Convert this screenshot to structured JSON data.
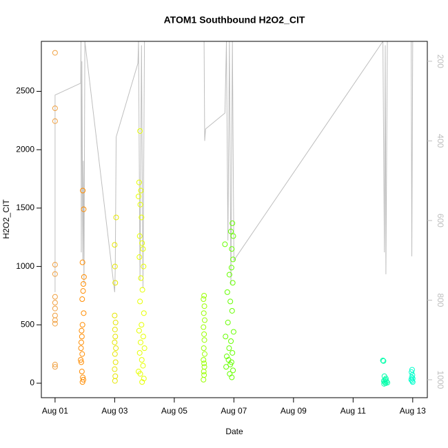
{
  "chart_data": {
    "type": "scatter",
    "title": "ATOM1 Southbound H2O2_CIT",
    "x_label": "Date",
    "y_label": "H2O2_CIT",
    "xlim": [
      -0.46,
      12.49
    ],
    "xticks": [
      {
        "value": 0,
        "label": "Aug 01"
      },
      {
        "value": 2,
        "label": "Aug 03"
      },
      {
        "value": 4,
        "label": "Aug 05"
      },
      {
        "value": 6,
        "label": "Aug 07"
      },
      {
        "value": 8,
        "label": "Aug 09"
      },
      {
        "value": 10,
        "label": "Aug 11"
      },
      {
        "value": 12,
        "label": "Aug 13"
      }
    ],
    "ylim": [
      -124,
      2928
    ],
    "yticks": [
      0,
      500,
      1000,
      1500,
      2000,
      2500
    ],
    "y2lim": [
      1045,
      150
    ],
    "y2ticks": [
      200,
      400,
      600,
      800,
      1000
    ],
    "y2_color": "#bebebe",
    "series": [
      {
        "color": "#f0a040",
        "x": [
          0.0,
          0.0,
          0.0,
          0.0,
          0.0,
          0.0,
          0.0,
          0.0,
          0.0,
          0.0,
          0.0,
          0.0,
          0.0
        ],
        "values": [
          2830,
          2355,
          2245,
          1015,
          935,
          740,
          690,
          640,
          580,
          540,
          510,
          160,
          140
        ]
      },
      {
        "color": "#ff8c00",
        "x": [
          0.93,
          0.96,
          0.92,
          0.97,
          0.95,
          0.94,
          0.91,
          0.96,
          0.92,
          0.89,
          0.9,
          0.88,
          0.87,
          0.91,
          0.86,
          0.88,
          0.9,
          0.93,
          0.95,
          0.92
        ],
        "values": [
          1650,
          1490,
          1035,
          910,
          850,
          790,
          720,
          600,
          500,
          450,
          400,
          350,
          300,
          250,
          200,
          180,
          100,
          50,
          30,
          10
        ]
      },
      {
        "color": "#e6e600",
        "x": [
          2.05,
          2.0,
          2.01,
          2.02,
          2.0,
          2.03,
          2.01,
          2.02,
          2.0,
          2.04,
          2.01,
          2.03,
          2.0,
          2.02,
          2.01
        ],
        "values": [
          1420,
          1185,
          1000,
          860,
          580,
          520,
          460,
          400,
          350,
          300,
          250,
          180,
          120,
          60,
          20
        ]
      },
      {
        "color": "#e6ff00",
        "x": [
          2.85,
          2.82,
          2.88,
          2.8,
          2.86,
          2.9,
          2.84,
          2.92,
          2.95,
          2.83,
          2.97,
          2.88,
          2.93,
          2.85,
          2.98,
          2.9,
          2.82,
          2.96,
          2.87,
          3.0,
          2.84,
          2.91,
          2.95,
          2.8,
          2.86,
          2.98,
          2.92
        ],
        "values": [
          2160,
          1720,
          1650,
          1600,
          1530,
          1420,
          1260,
          1200,
          1150,
          1080,
          1000,
          900,
          800,
          700,
          600,
          500,
          450,
          400,
          350,
          300,
          260,
          200,
          150,
          100,
          80,
          40,
          10
        ]
      },
      {
        "color": "#99ff00",
        "x": [
          5.0,
          4.98,
          5.01,
          4.99,
          5.02,
          4.98,
          5.0,
          5.01,
          4.99,
          5.02,
          4.98,
          5.0,
          5.01,
          4.99,
          5.0,
          4.98
        ],
        "values": [
          750,
          720,
          660,
          600,
          540,
          480,
          420,
          370,
          300,
          250,
          200,
          170,
          140,
          100,
          70,
          30
        ]
      },
      {
        "color": "#66ff00",
        "x": [
          5.95,
          5.9,
          5.98,
          5.7,
          5.93,
          5.97,
          5.92,
          5.85,
          5.96,
          5.78,
          5.88,
          5.94,
          5.8,
          5.99,
          5.72,
          5.9,
          5.84,
          5.95,
          5.76,
          5.82,
          5.92,
          5.88,
          5.74,
          5.97,
          5.86,
          5.93
        ],
        "values": [
          1370,
          1300,
          1260,
          1190,
          1150,
          1060,
          990,
          930,
          860,
          780,
          700,
          620,
          520,
          440,
          400,
          360,
          300,
          260,
          230,
          200,
          180,
          160,
          140,
          110,
          80,
          50
        ]
      },
      {
        "color": "#00ffaa",
        "x": [
          11.0,
          11.02,
          11.05,
          11.1,
          11.08,
          11.03,
          11.12,
          11.06,
          11.15,
          11.09,
          11.04
        ],
        "values": [
          195,
          190,
          60,
          40,
          30,
          20,
          15,
          10,
          5,
          0,
          -5
        ]
      },
      {
        "color": "#00ffcc",
        "x": [
          11.98,
          11.96,
          11.99,
          11.97,
          12.0,
          11.95,
          11.98,
          12.0
        ],
        "values": [
          115,
          95,
          70,
          50,
          40,
          30,
          20,
          10
        ]
      },
      {
        "type": "line",
        "axis": "y2",
        "color": "#bebebe",
        "x": [
          0,
          0,
          0.86,
          0.87,
          0.88,
          0.9,
          0.93,
          0.95,
          0.97,
          1.0,
          2.0,
          2.02,
          2.05,
          2.78,
          2.8,
          2.85,
          2.9,
          2.95,
          3.0,
          3.3,
          5.0,
          5.02,
          5.05,
          5.7,
          5.75,
          5.8,
          5.85,
          5.9,
          5.95,
          6.0,
          11.0,
          11.05,
          11.08,
          11.1,
          11.15,
          11.95,
          11.97,
          12.0
        ],
        "values": [
          780,
          285,
          255,
          150,
          680,
          200,
          700,
          450,
          760,
          150,
          780,
          720,
          390,
          205,
          150,
          750,
          160,
          770,
          150,
          150,
          150,
          400,
          370,
          330,
          150,
          650,
          150,
          760,
          150,
          700,
          150,
          680,
          160,
          735,
          150,
          150,
          690,
          150
        ]
      }
    ]
  }
}
